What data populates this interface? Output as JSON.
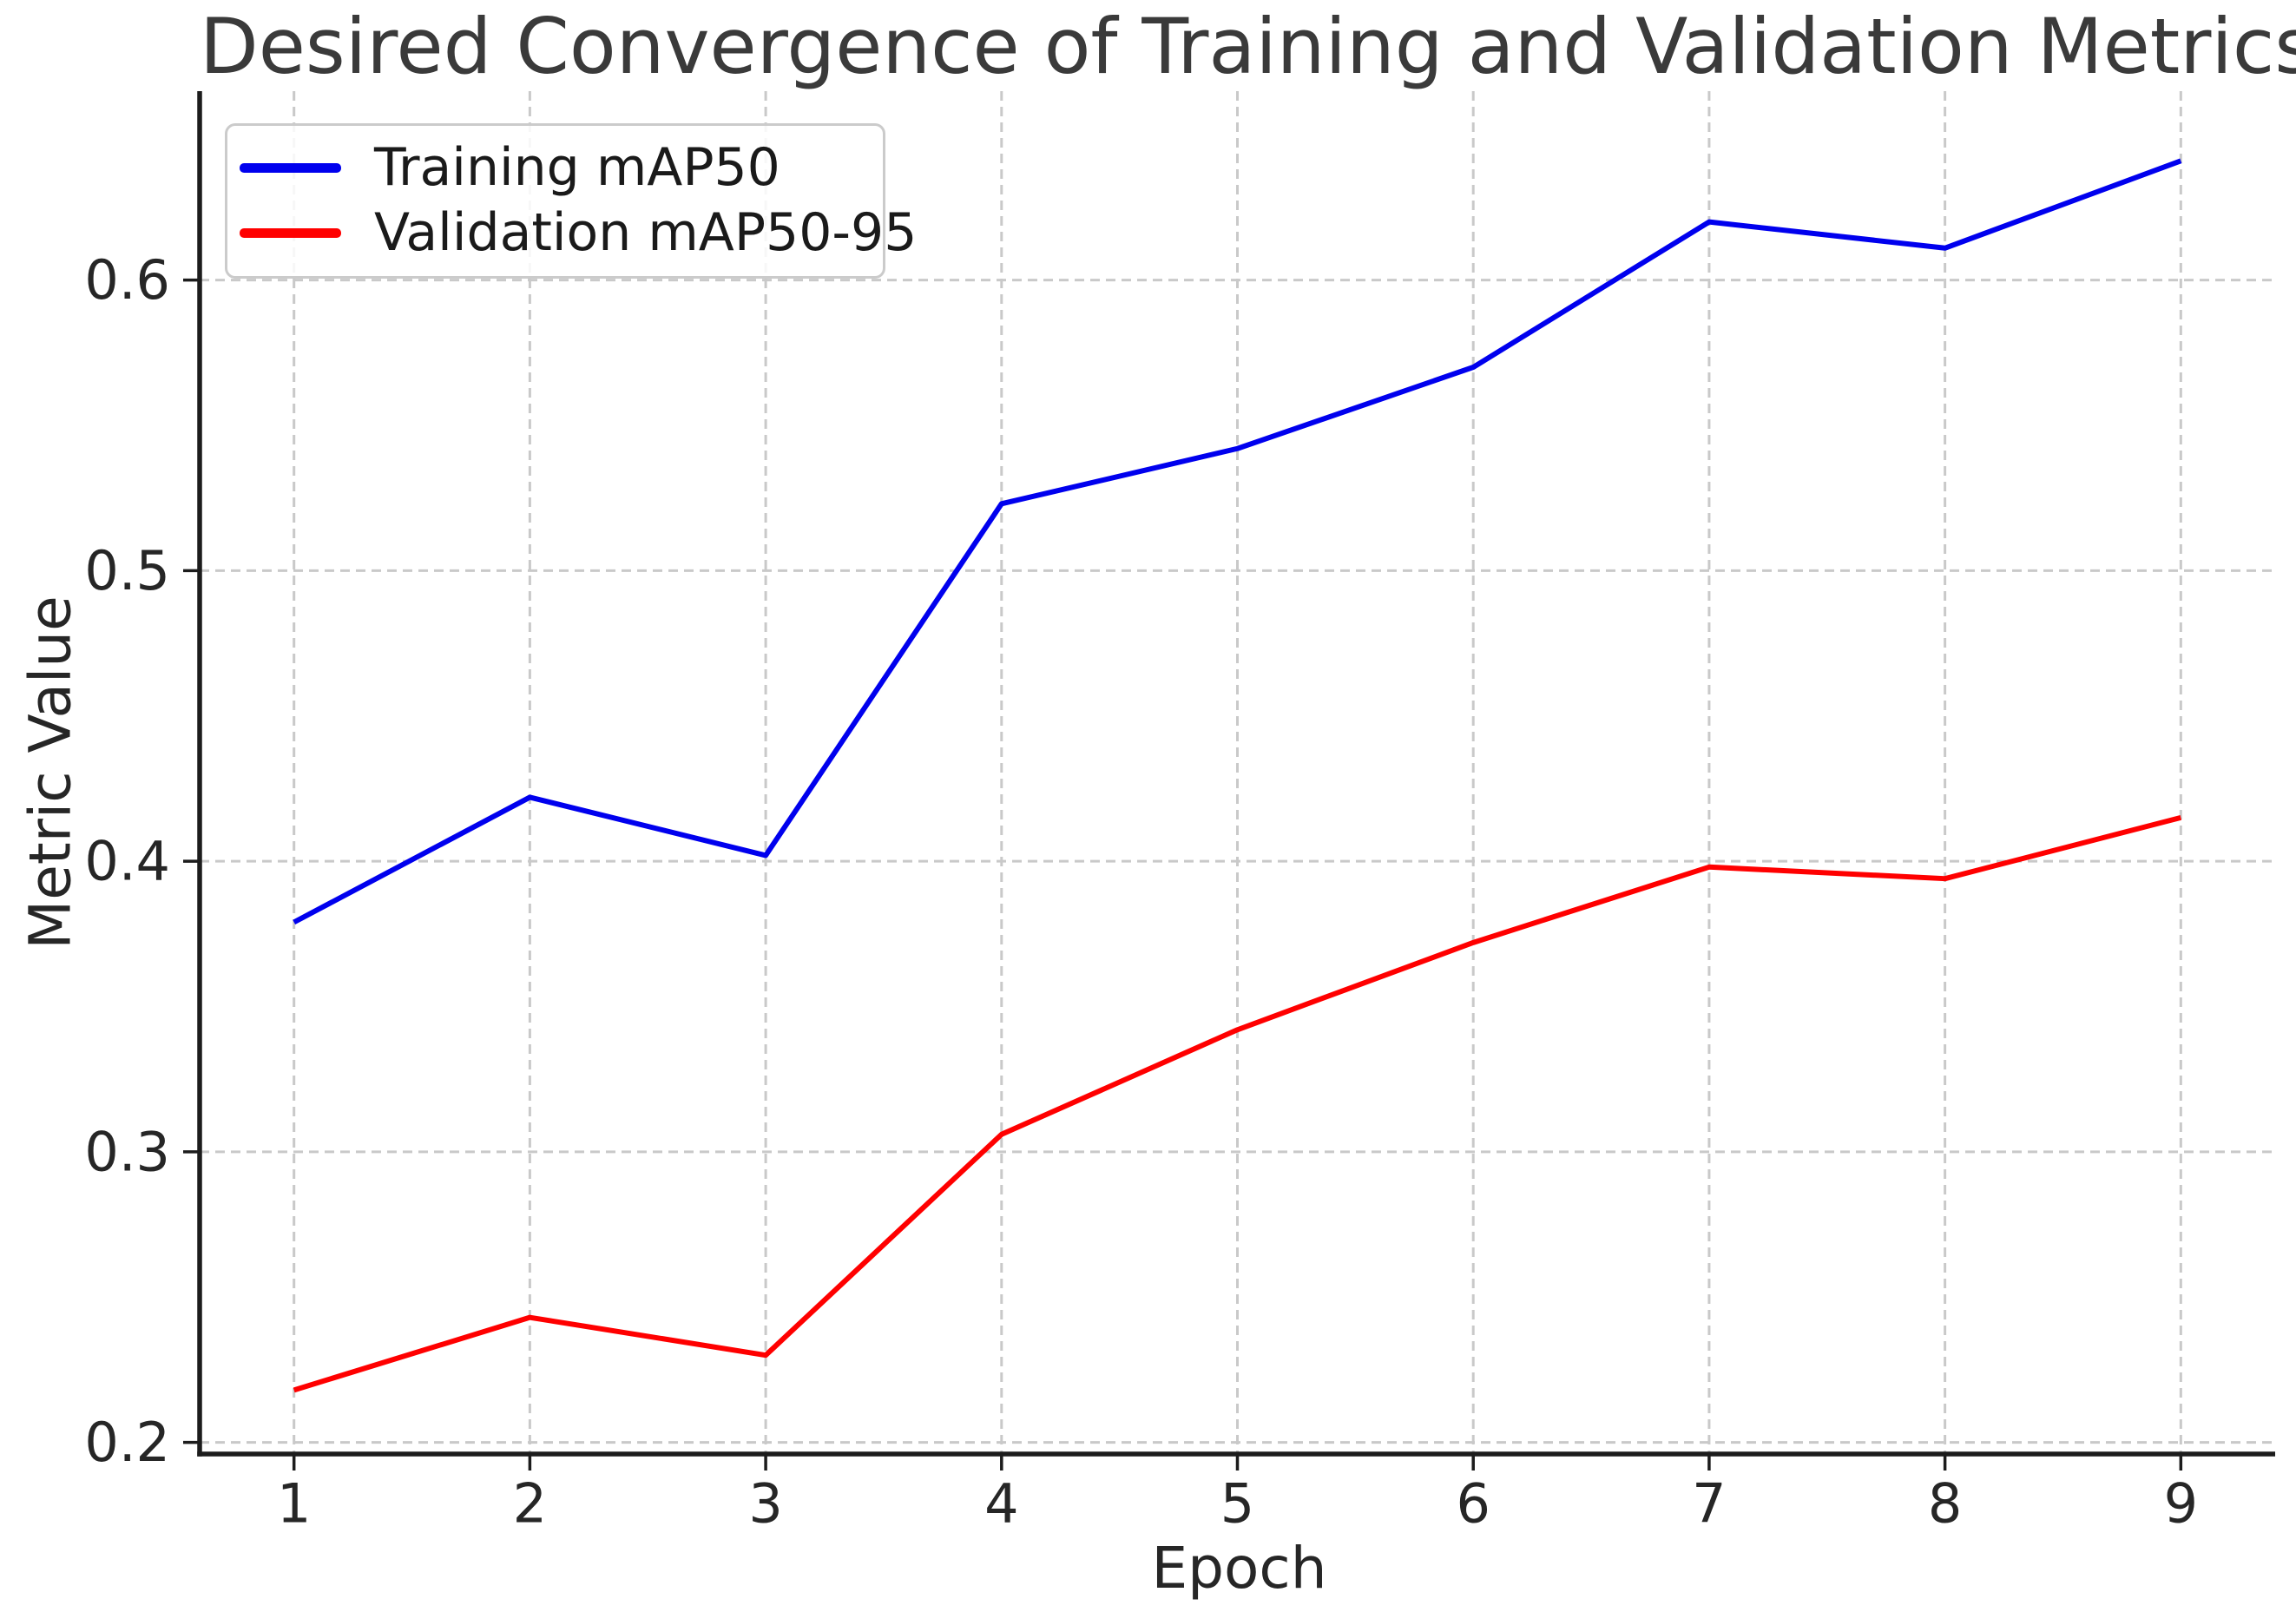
{
  "chart_data": {
    "type": "line",
    "title": "Desired Convergence of Training and Validation Metrics",
    "xlabel": "Epoch",
    "ylabel": "Metric Value",
    "x": [
      1,
      2,
      3,
      4,
      5,
      6,
      7,
      8,
      9
    ],
    "series": [
      {
        "name": "Training mAP50",
        "color": "#0000ee",
        "values": [
          0.379,
          0.422,
          0.402,
          0.523,
          0.542,
          0.57,
          0.62,
          0.611,
          0.641
        ]
      },
      {
        "name": "Validation mAP50-95",
        "color": "#ff0000",
        "values": [
          0.218,
          0.243,
          0.23,
          0.306,
          0.342,
          0.372,
          0.398,
          0.394,
          0.415
        ]
      }
    ],
    "xlim": [
      0.6,
      9.4
    ],
    "ylim": [
      0.196,
      0.665
    ],
    "xticks": [
      1,
      2,
      3,
      4,
      5,
      6,
      7,
      8,
      9
    ],
    "xtick_labels": [
      "1",
      "2",
      "3",
      "4",
      "5",
      "6",
      "7",
      "8",
      "9"
    ],
    "yticks": [
      0.2,
      0.3,
      0.4,
      0.5,
      0.6
    ],
    "ytick_labels": [
      "0.2",
      "0.3",
      "0.4",
      "0.5",
      "0.6"
    ],
    "grid": {
      "show": true,
      "style": "dashed",
      "color": "#c9c9c9"
    },
    "legend": {
      "position": "upper-left"
    },
    "colors": {
      "title_text": "#3a3a3a",
      "axis_text": "#262626",
      "spine": "#1c1c1c",
      "background": "#ffffff"
    }
  }
}
